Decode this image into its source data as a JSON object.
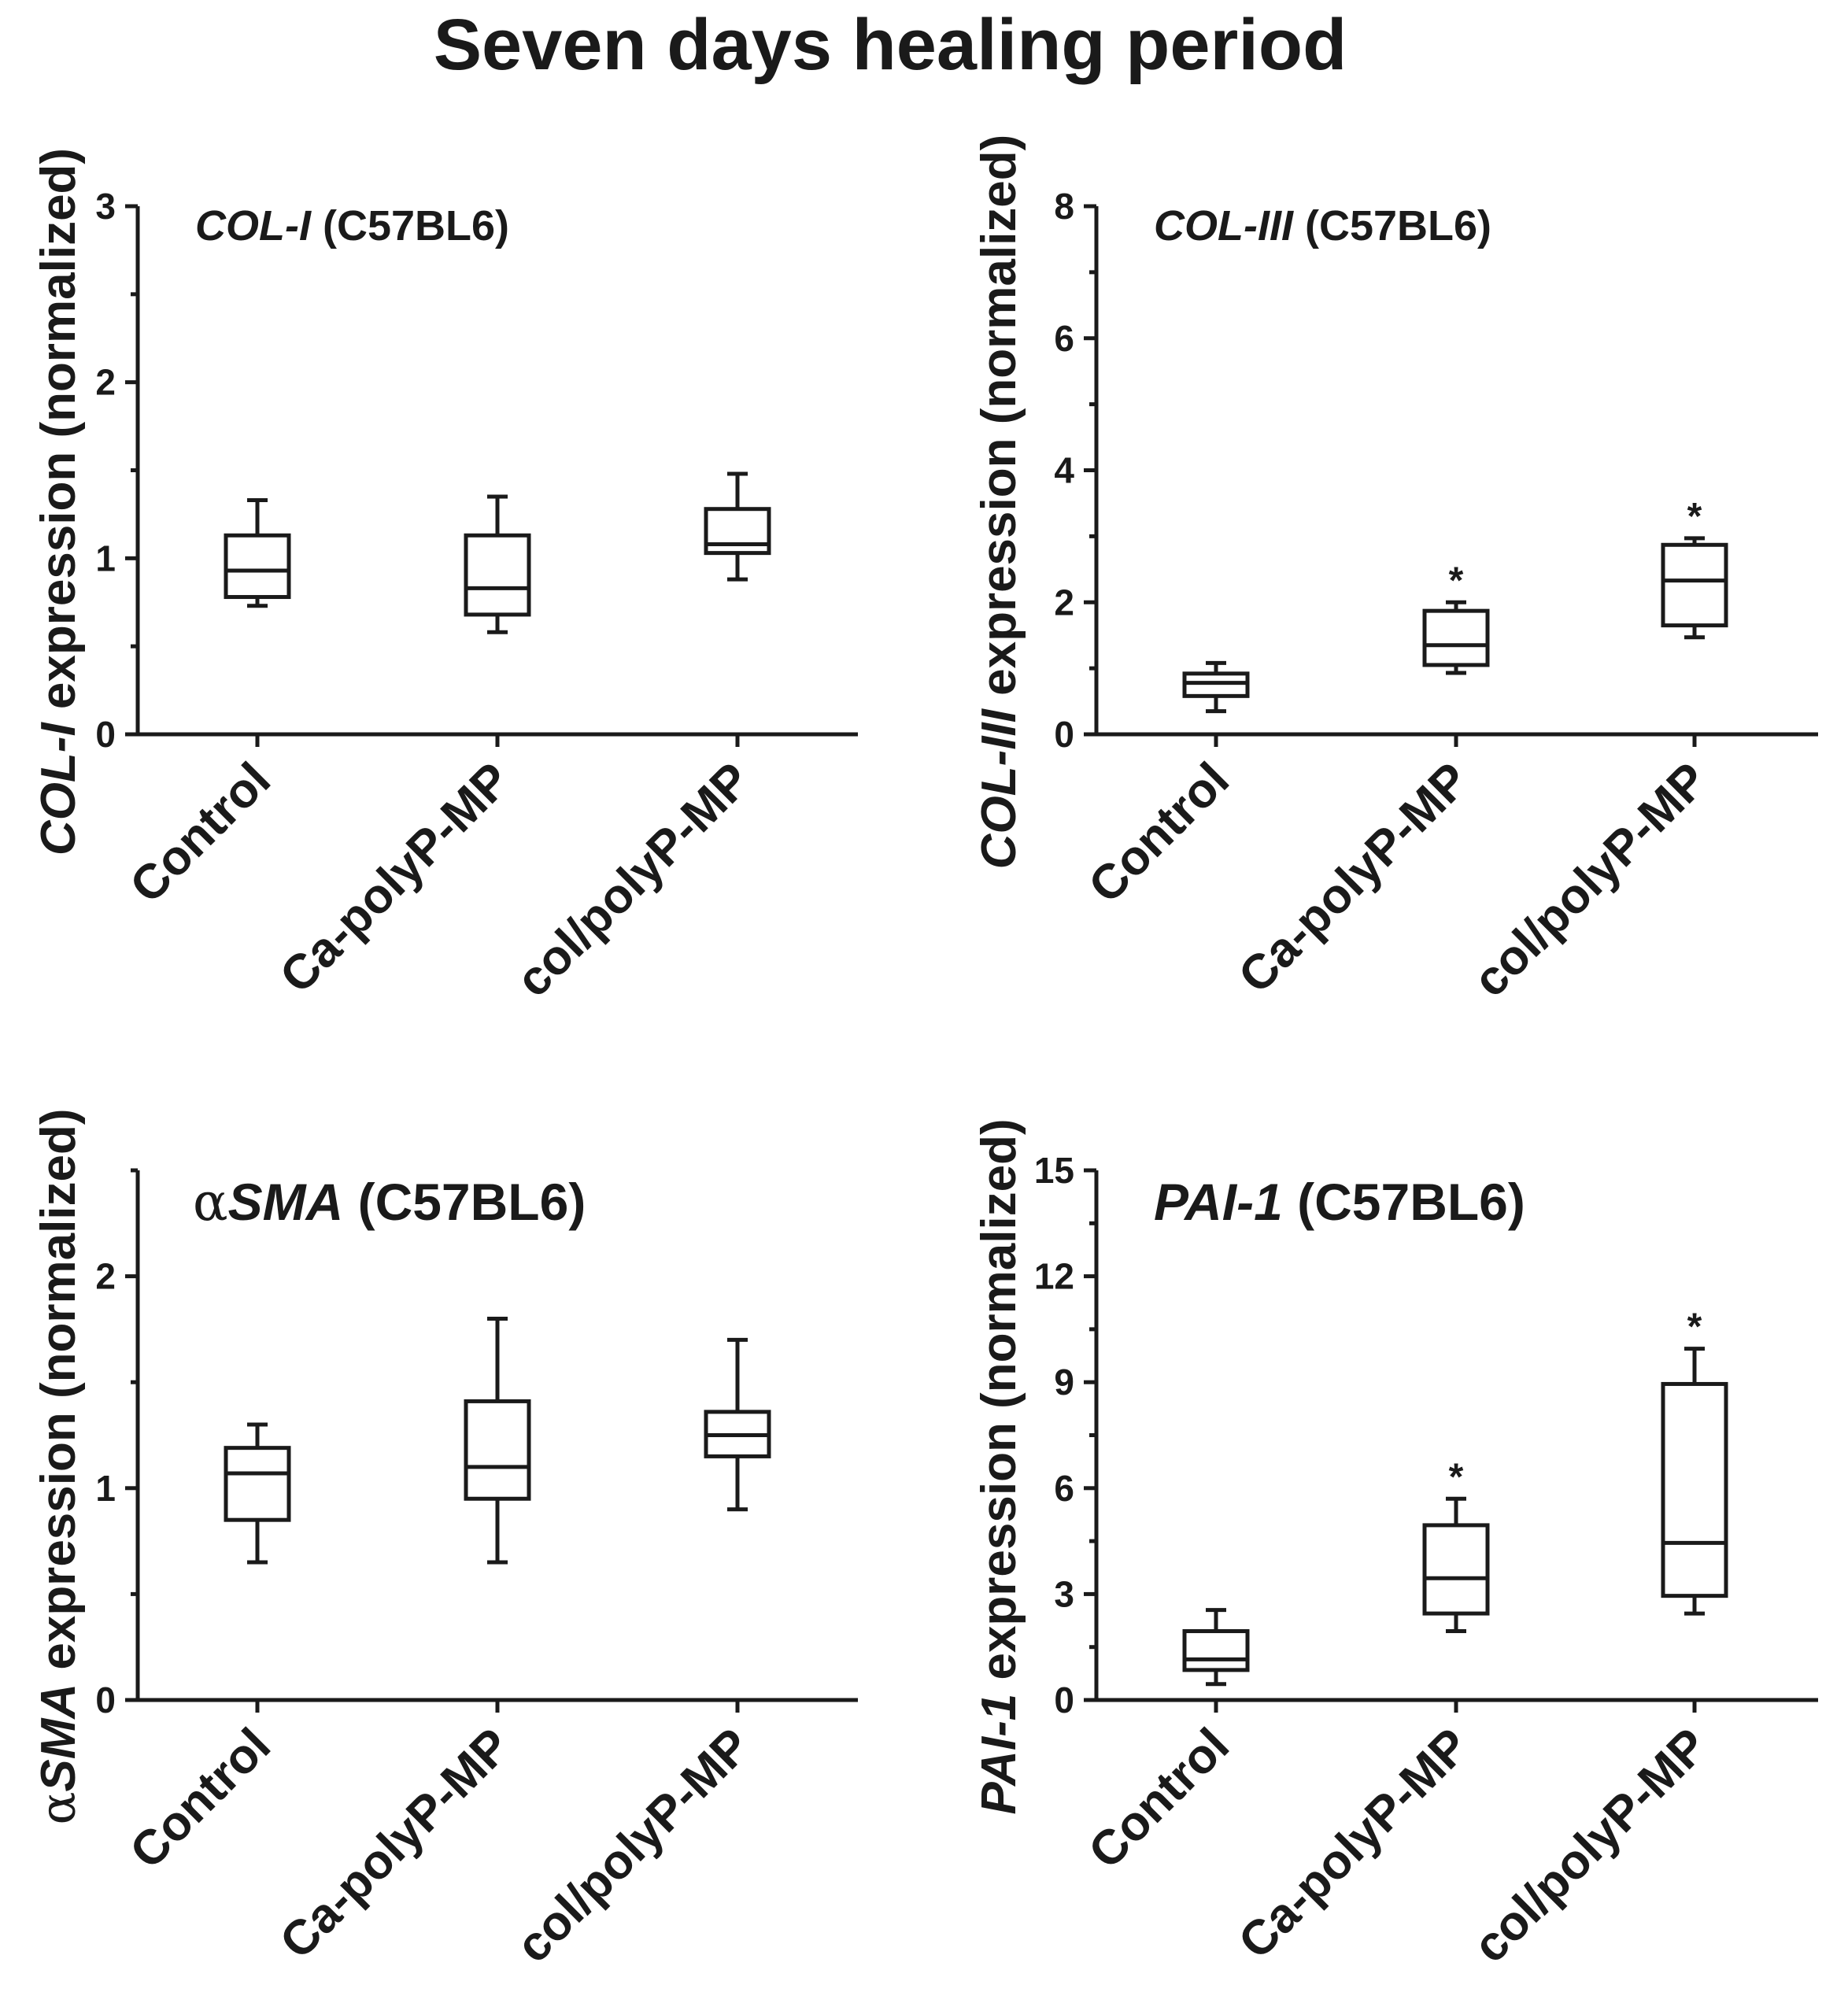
{
  "figure": {
    "title": "Seven days healing period"
  },
  "chart_data": [
    {
      "type": "box",
      "label": {
        "gene": "COL-I",
        "suffix": " (C57BL6)",
        "alpha": ""
      },
      "ylabel": {
        "gene": "COL-I",
        "rest": " expression (normalized)",
        "alpha": ""
      },
      "categories": [
        "Control",
        "Ca-polyP-MP",
        "col/polyP-MP"
      ],
      "ylim": [
        0,
        3
      ],
      "yticks": [
        0,
        1,
        2,
        3
      ],
      "minor_step": 0.5,
      "boxes": [
        {
          "min": 0.73,
          "q1": 0.78,
          "median": 0.93,
          "q3": 1.13,
          "max": 1.33,
          "sig": ""
        },
        {
          "min": 0.58,
          "q1": 0.68,
          "median": 0.83,
          "q3": 1.13,
          "max": 1.35,
          "sig": ""
        },
        {
          "min": 0.88,
          "q1": 1.03,
          "median": 1.08,
          "q3": 1.28,
          "max": 1.48,
          "sig": ""
        }
      ]
    },
    {
      "type": "box",
      "label": {
        "gene": "COL-III",
        "suffix": " (C57BL6)",
        "alpha": ""
      },
      "ylabel": {
        "gene": "COL-III",
        "rest": " expression (normalized)",
        "alpha": ""
      },
      "categories": [
        "Control",
        "Ca-polyP-MP",
        "col/polyP-MP"
      ],
      "ylim": [
        0,
        8
      ],
      "yticks": [
        0,
        2,
        4,
        6,
        8
      ],
      "minor_step": 1,
      "boxes": [
        {
          "min": 0.35,
          "q1": 0.58,
          "median": 0.78,
          "q3": 0.92,
          "max": 1.08,
          "sig": ""
        },
        {
          "min": 0.93,
          "q1": 1.05,
          "median": 1.35,
          "q3": 1.87,
          "max": 2.0,
          "sig": "*"
        },
        {
          "min": 1.47,
          "q1": 1.65,
          "median": 2.33,
          "q3": 2.87,
          "max": 2.97,
          "sig": "*"
        }
      ]
    },
    {
      "type": "box",
      "label": {
        "gene": "SMA",
        "suffix": " (C57BL6)",
        "alpha": "α"
      },
      "ylabel": {
        "gene": "SMA",
        "rest": " expression (normalized)",
        "alpha": "α"
      },
      "categories": [
        "Control",
        "Ca-polyP-MP",
        "col/polyP-MP"
      ],
      "ylim": [
        0,
        2.5
      ],
      "yticks": [
        0,
        1,
        2
      ],
      "minor_step": 0.5,
      "boxes": [
        {
          "min": 0.65,
          "q1": 0.85,
          "median": 1.07,
          "q3": 1.19,
          "max": 1.3,
          "sig": ""
        },
        {
          "min": 0.65,
          "q1": 0.95,
          "median": 1.1,
          "q3": 1.41,
          "max": 1.8,
          "sig": ""
        },
        {
          "min": 0.9,
          "q1": 1.15,
          "median": 1.25,
          "q3": 1.36,
          "max": 1.7,
          "sig": ""
        }
      ]
    },
    {
      "type": "box",
      "label": {
        "gene": "PAI-1",
        "suffix": " (C57BL6)",
        "alpha": ""
      },
      "ylabel": {
        "gene": "PAI-1",
        "rest": " expression (normalized)",
        "alpha": ""
      },
      "categories": [
        "Control",
        "Ca-polyP-MP",
        "col/polyP-MP"
      ],
      "ylim": [
        0,
        15
      ],
      "yticks": [
        0,
        3,
        6,
        9,
        12,
        15
      ],
      "minor_step": 1.5,
      "boxes": [
        {
          "min": 0.45,
          "q1": 0.85,
          "median": 1.15,
          "q3": 1.95,
          "max": 2.55,
          "sig": ""
        },
        {
          "min": 1.95,
          "q1": 2.45,
          "median": 3.45,
          "q3": 4.95,
          "max": 5.7,
          "sig": "*"
        },
        {
          "min": 2.45,
          "q1": 2.95,
          "median": 4.45,
          "q3": 8.95,
          "max": 9.95,
          "sig": "*"
        }
      ]
    }
  ]
}
